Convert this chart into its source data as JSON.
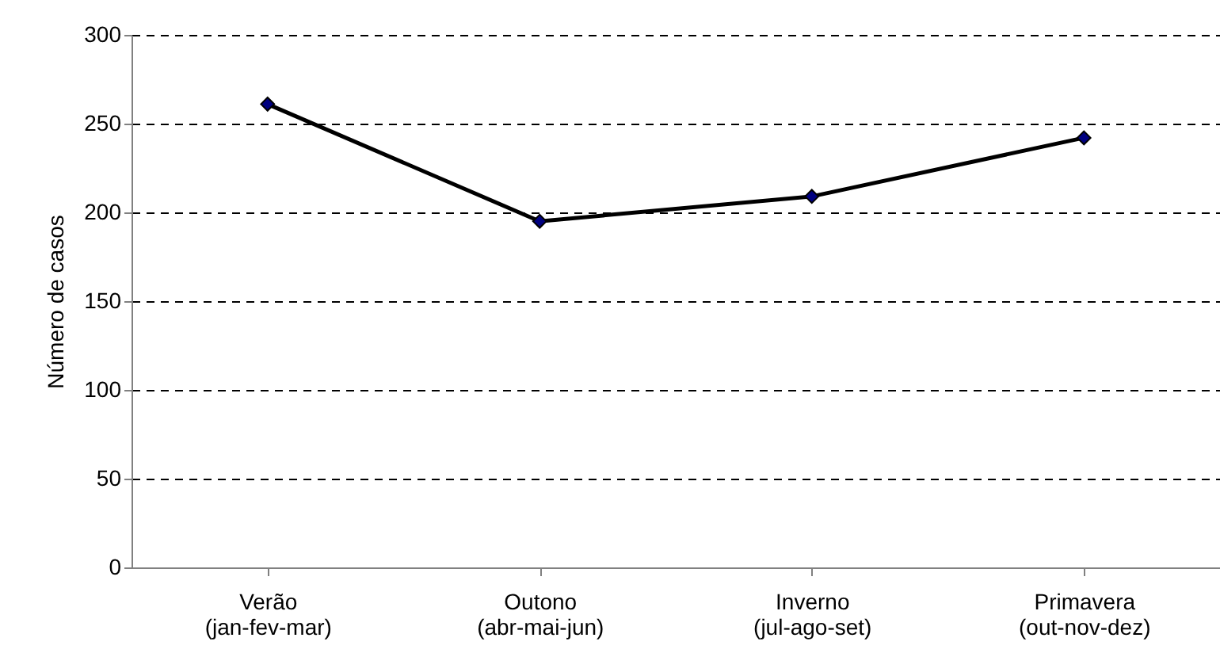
{
  "chart_data": {
    "type": "line",
    "ylabel": "Número de casos",
    "categories": [
      "Verão\n(jan-fev-mar)",
      "Outono\n(abr-mai-jun)",
      "Inverno\n(jul-ago-set)",
      "Primavera\n(out-nov-dez)"
    ],
    "series": [
      {
        "color": "#000000",
        "values": [
          261,
          195,
          209,
          242
        ]
      }
    ],
    "ylim": [
      0,
      300
    ],
    "yticks": [
      0,
      50,
      100,
      150,
      200,
      250,
      300
    ],
    "grid": "y",
    "marker": "diamond",
    "line_style": "solid"
  }
}
